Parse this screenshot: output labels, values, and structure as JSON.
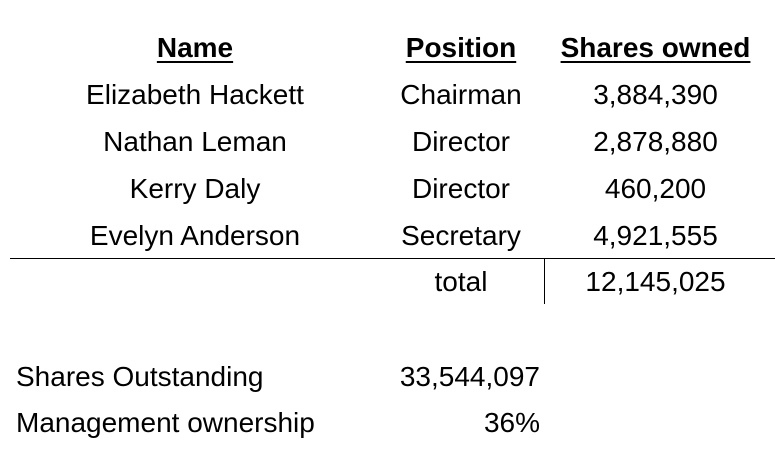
{
  "table": {
    "headers": {
      "name": "Name",
      "position": "Position",
      "shares": "Shares owned"
    },
    "rows": [
      {
        "name": "Elizabeth Hackett",
        "position": "Chairman",
        "shares": "3,884,390"
      },
      {
        "name": "Nathan Leman",
        "position": "Director",
        "shares": "2,878,880"
      },
      {
        "name": "Kerry Daly",
        "position": "Director",
        "shares": "460,200"
      },
      {
        "name": "Evelyn Anderson",
        "position": "Secretary",
        "shares": "4,921,555"
      }
    ],
    "total_label": "total",
    "total_value": "12,145,025"
  },
  "summary": {
    "outstanding_label": "Shares Outstanding",
    "outstanding_value": "33,544,097",
    "ownership_label": "Management ownership",
    "ownership_value": "36%"
  }
}
